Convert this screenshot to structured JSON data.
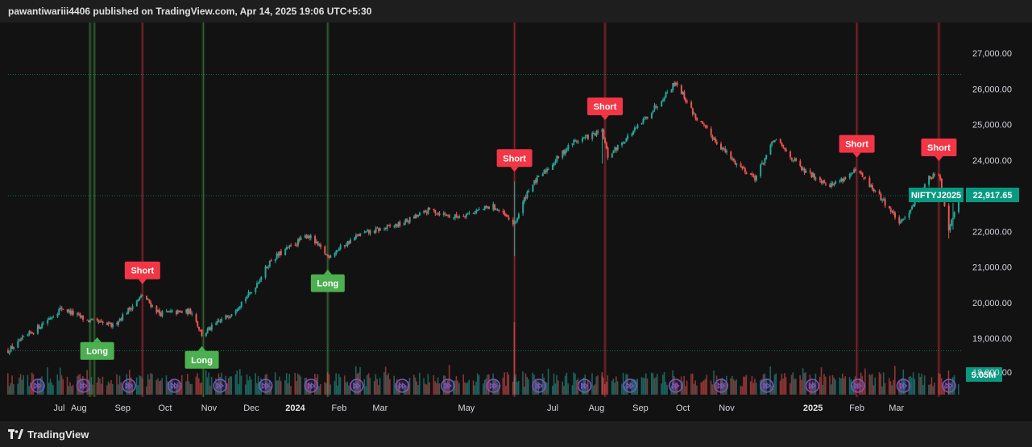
{
  "header": {
    "publisher": "pawantiwariii4406 published on TradingView.com, Apr 14, 2025 19:06 UTC+5:30"
  },
  "footer": {
    "brand": "TradingView",
    "logo_icon": "tradingview-logo-icon"
  },
  "colors": {
    "background": "#121212",
    "up": "#26a69a",
    "down": "#ef5350",
    "short_label": "#f23645",
    "long_label": "#4caf50",
    "price_tag": "#089981",
    "replay_icon": "#7e57c2"
  },
  "chart_data": {
    "type": "candlestick",
    "symbol": "NIFTYJ2025",
    "last_price": "22,917.65",
    "volume_label": "9.05M",
    "ylim": [
      18300,
      27800
    ],
    "y_ticks": [
      "27,000.00",
      "26,000.00",
      "25,000.00",
      "24,000.00",
      "23,000.00",
      "22,000.00",
      "21,000.00",
      "20,000.00",
      "19,000.00",
      "18,000.00"
    ],
    "y_tick_values": [
      27000,
      26000,
      25000,
      24000,
      23000,
      22000,
      21000,
      20000,
      19000,
      18000
    ],
    "x_ticks": [
      "Jul",
      "Aug",
      "Sep",
      "Oct",
      "Nov",
      "Dec",
      "2024",
      "Feb",
      "Mar",
      "May",
      "Jul",
      "Aug",
      "Sep",
      "Oct",
      "Nov",
      "2025",
      "Feb",
      "Mar"
    ],
    "x_tick_dates": [
      "2023-07-01",
      "2023-08-01",
      "2023-09-01",
      "2023-10-01",
      "2023-11-01",
      "2023-12-01",
      "2024-01-01",
      "2024-02-01",
      "2024-03-01",
      "2024-05-01",
      "2024-07-01",
      "2024-08-01",
      "2024-09-01",
      "2024-10-01",
      "2024-11-01",
      "2025-01-01",
      "2025-02-01",
      "2025-03-01"
    ],
    "date_range": [
      "2023-06-12",
      "2025-04-14"
    ],
    "horizontal_levels": [
      26400,
      23000,
      18650
    ],
    "price_path": [
      [
        "2023-06-12",
        18650
      ],
      [
        "2023-07-03",
        19300
      ],
      [
        "2023-07-20",
        19850
      ],
      [
        "2023-08-07",
        19500
      ],
      [
        "2023-08-25",
        19350
      ],
      [
        "2023-09-15",
        20200
      ],
      [
        "2023-09-27",
        19700
      ],
      [
        "2023-10-20",
        19750
      ],
      [
        "2023-10-27",
        19100
      ],
      [
        "2023-11-15",
        19650
      ],
      [
        "2023-12-01",
        20300
      ],
      [
        "2023-12-15",
        21200
      ],
      [
        "2024-01-10",
        21900
      ],
      [
        "2024-01-24",
        21300
      ],
      [
        "2024-02-15",
        21900
      ],
      [
        "2024-03-15",
        22200
      ],
      [
        "2024-04-05",
        22600
      ],
      [
        "2024-04-22",
        22400
      ],
      [
        "2024-05-20",
        22700
      ],
      [
        "2024-06-04",
        22200
      ],
      [
        "2024-06-14",
        23200
      ],
      [
        "2024-07-15",
        24500
      ],
      [
        "2024-08-05",
        24800
      ],
      [
        "2024-08-09",
        24100
      ],
      [
        "2024-09-01",
        25000
      ],
      [
        "2024-09-26",
        26200
      ],
      [
        "2024-10-10",
        25200
      ],
      [
        "2024-11-05",
        24000
      ],
      [
        "2024-11-21",
        23500
      ],
      [
        "2024-12-05",
        24600
      ],
      [
        "2024-12-25",
        23700
      ],
      [
        "2025-01-14",
        23300
      ],
      [
        "2025-02-01",
        23700
      ],
      [
        "2025-02-21",
        22800
      ],
      [
        "2025-03-04",
        22200
      ],
      [
        "2025-03-24",
        23500
      ],
      [
        "2025-03-31",
        23600
      ],
      [
        "2025-04-07",
        22100
      ],
      [
        "2025-04-14",
        22900
      ]
    ],
    "signals": [
      {
        "label": "Short",
        "type": "short",
        "date": "2023-09-15",
        "price": 20250
      },
      {
        "label": "Short",
        "type": "short",
        "date": "2024-06-04",
        "price": 23400
      },
      {
        "label": "Short",
        "type": "short",
        "date": "2024-08-07",
        "price": 24850
      },
      {
        "label": "Short",
        "type": "short",
        "date": "2025-02-01",
        "price": 23800
      },
      {
        "label": "Short",
        "type": "short",
        "date": "2025-03-31",
        "price": 23700
      },
      {
        "label": "Long",
        "type": "long",
        "date": "2023-08-14",
        "price": 19300
      },
      {
        "label": "Long",
        "type": "long",
        "date": "2023-10-27",
        "price": 19050
      },
      {
        "label": "Long",
        "type": "long",
        "date": "2024-01-24",
        "price": 21200
      }
    ],
    "vertical_markers": [
      {
        "date": "2023-08-09",
        "color": "green"
      },
      {
        "date": "2023-08-12",
        "color": "green"
      },
      {
        "date": "2023-09-15",
        "color": "red"
      },
      {
        "date": "2023-10-28",
        "color": "green"
      },
      {
        "date": "2024-01-24",
        "color": "green"
      },
      {
        "date": "2024-06-04",
        "color": "red"
      },
      {
        "date": "2024-08-07",
        "color": "red"
      },
      {
        "date": "2025-02-01",
        "color": "red"
      },
      {
        "date": "2025-03-31",
        "color": "red"
      }
    ],
    "replay_icons_count": 21,
    "replay_icon": "fast-forward-icon",
    "grid": false
  }
}
